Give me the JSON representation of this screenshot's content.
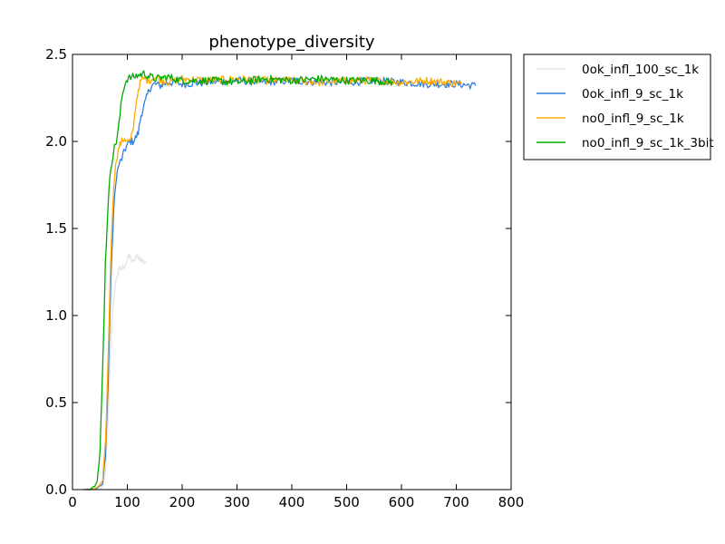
{
  "chart_data": {
    "type": "line",
    "title": "phenotype_diversity",
    "xlabel": "",
    "ylabel": "",
    "xlim": [
      0,
      800
    ],
    "ylim": [
      0.0,
      2.5
    ],
    "x_ticks": [
      0,
      100,
      200,
      300,
      400,
      500,
      600,
      700,
      800
    ],
    "y_ticks": [
      0.0,
      0.5,
      1.0,
      1.5,
      2.0,
      2.5
    ],
    "x_tick_labels": [
      "0",
      "100",
      "200",
      "300",
      "400",
      "500",
      "600",
      "700",
      "800"
    ],
    "y_tick_labels": [
      "0.0",
      "0.5",
      "1.0",
      "1.5",
      "2.0",
      "2.5"
    ],
    "grid": false,
    "legend_position": "outside-right-top",
    "series": [
      {
        "name": "0ok_infl_100_sc_1k",
        "color": "#e6e6e6",
        "x": [
          40,
          50,
          55,
          60,
          65,
          70,
          75,
          80,
          85,
          90,
          95,
          100,
          105,
          110,
          115,
          120,
          125,
          130,
          135
        ],
        "y": [
          0.0,
          0.0,
          0.02,
          0.1,
          0.4,
          0.85,
          1.1,
          1.22,
          1.26,
          1.27,
          1.29,
          1.32,
          1.34,
          1.3,
          1.33,
          1.34,
          1.32,
          1.31,
          1.31
        ]
      },
      {
        "name": "0ok_infl_9_sc_1k",
        "color": "#2f7fe0",
        "x": [
          25,
          35,
          45,
          55,
          60,
          65,
          70,
          75,
          80,
          85,
          90,
          95,
          100,
          105,
          110,
          115,
          120,
          125,
          130,
          135,
          140,
          145,
          150,
          160,
          175,
          200,
          250,
          300,
          350,
          400,
          450,
          500,
          550,
          600,
          650,
          700,
          735
        ],
        "y": [
          0.0,
          0.0,
          0.01,
          0.03,
          0.2,
          0.6,
          1.2,
          1.6,
          1.8,
          1.87,
          1.9,
          1.95,
          1.98,
          2.0,
          2.0,
          2.02,
          2.05,
          2.15,
          2.2,
          2.25,
          2.3,
          2.32,
          2.33,
          2.32,
          2.34,
          2.33,
          2.34,
          2.35,
          2.34,
          2.35,
          2.34,
          2.34,
          2.35,
          2.34,
          2.33,
          2.33,
          2.32
        ]
      },
      {
        "name": "no0_infl_9_sc_1k",
        "color": "#ffaa00",
        "x": [
          25,
          35,
          45,
          55,
          60,
          65,
          70,
          75,
          80,
          85,
          90,
          95,
          100,
          105,
          110,
          115,
          120,
          125,
          130,
          140,
          150,
          175,
          200,
          250,
          300,
          350,
          400,
          450,
          500,
          550,
          600,
          650,
          710
        ],
        "y": [
          0.0,
          0.0,
          0.01,
          0.05,
          0.25,
          0.75,
          1.35,
          1.75,
          1.9,
          1.97,
          2.0,
          2.02,
          2.0,
          2.0,
          2.05,
          2.2,
          2.3,
          2.35,
          2.36,
          2.35,
          2.37,
          2.34,
          2.36,
          2.35,
          2.36,
          2.35,
          2.35,
          2.34,
          2.35,
          2.35,
          2.34,
          2.35,
          2.33
        ]
      },
      {
        "name": "no0_infl_9_sc_1k_3bit",
        "color": "#00aa00",
        "x": [
          20,
          30,
          40,
          45,
          50,
          55,
          60,
          65,
          70,
          75,
          80,
          85,
          90,
          95,
          100,
          110,
          120,
          130,
          150,
          175,
          200,
          250,
          300,
          350,
          400,
          450,
          500,
          550,
          585
        ],
        "y": [
          0.0,
          0.0,
          0.02,
          0.05,
          0.2,
          0.7,
          1.3,
          1.65,
          1.85,
          1.95,
          2.0,
          2.1,
          2.25,
          2.33,
          2.36,
          2.37,
          2.38,
          2.39,
          2.36,
          2.37,
          2.35,
          2.35,
          2.34,
          2.36,
          2.35,
          2.36,
          2.35,
          2.35,
          2.34
        ]
      }
    ]
  }
}
